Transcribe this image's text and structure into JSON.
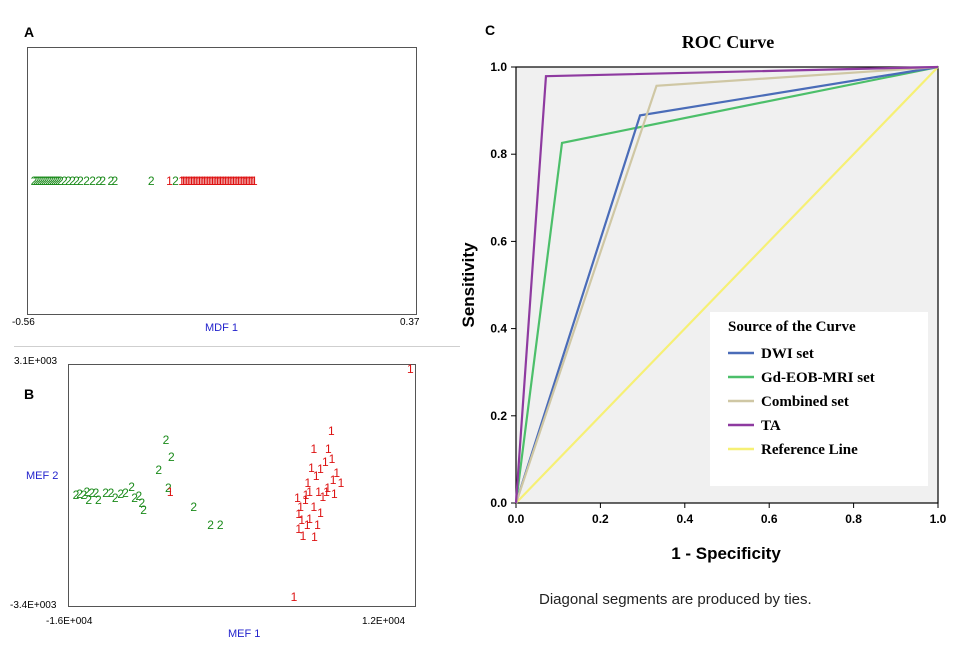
{
  "panels": {
    "a": "A",
    "b": "B",
    "c": "C"
  },
  "colors": {
    "group2": "#1a8a1a",
    "group1": "#dd1111",
    "axis_title": "#2222cc",
    "roc_bg": "#f0f0f0"
  },
  "chart_data": [
    {
      "id": "A",
      "type": "scatter",
      "title": "",
      "xlabel": "MDF 1",
      "ylabel": "",
      "x_tick_labels": [
        "-0.56",
        "0.37"
      ],
      "xlim": [
        -0.56,
        0.37
      ],
      "groups": [
        {
          "label": "2",
          "x": [
            -0.555,
            -0.55,
            -0.545,
            -0.54,
            -0.535,
            -0.53,
            -0.525,
            -0.52,
            -0.515,
            -0.51,
            -0.505,
            -0.5,
            -0.495,
            -0.49,
            -0.48,
            -0.47,
            -0.46,
            -0.45,
            -0.44,
            -0.425,
            -0.41,
            -0.395,
            -0.385,
            -0.365,
            -0.355,
            -0.265,
            -0.205
          ]
        },
        {
          "label": "1",
          "x": [
            -0.22,
            -0.19,
            -0.186,
            -0.182,
            -0.178,
            -0.174,
            -0.17,
            -0.166,
            -0.162,
            -0.158,
            -0.154,
            -0.15,
            -0.146,
            -0.142,
            -0.138,
            -0.134,
            -0.13,
            -0.126,
            -0.122,
            -0.118,
            -0.114,
            -0.11,
            -0.106,
            -0.102,
            -0.098,
            -0.094,
            -0.09,
            -0.086,
            -0.082,
            -0.078,
            -0.074,
            -0.07,
            -0.066,
            -0.062,
            -0.058,
            -0.054,
            -0.05,
            -0.046,
            -0.042,
            -0.038,
            -0.034,
            -0.03,
            -0.026,
            -0.022,
            -0.018,
            -0.014,
            -0.01
          ]
        }
      ]
    },
    {
      "id": "B",
      "type": "scatter",
      "title": "",
      "xlabel": "MEF 1",
      "ylabel": "MEF 2",
      "x_tick_labels": [
        "-1.6E+004",
        "1.2E+004"
      ],
      "y_tick_labels": [
        "3.1E+003",
        "-3.4E+003"
      ],
      "xlim": [
        -16000,
        12000
      ],
      "ylim": [
        -3400,
        3100
      ],
      "groups": [
        {
          "label": "2",
          "points": [
            [
              -15750,
              -410
            ],
            [
              -15450,
              -390
            ],
            [
              -15100,
              -420
            ],
            [
              -14850,
              -320
            ],
            [
              -14700,
              -550
            ],
            [
              -14450,
              -360
            ],
            [
              -14100,
              -370
            ],
            [
              -13900,
              -560
            ],
            [
              -13300,
              -350
            ],
            [
              -12850,
              -350
            ],
            [
              -12500,
              -500
            ],
            [
              -12050,
              -390
            ],
            [
              -11650,
              -370
            ],
            [
              -11150,
              -180
            ],
            [
              -10900,
              -500
            ],
            [
              -10550,
              -430
            ],
            [
              -10300,
              -630
            ],
            [
              -10150,
              -820
            ],
            [
              -8300,
              1130
            ],
            [
              -8900,
              280
            ],
            [
              -7850,
              640
            ],
            [
              -8100,
              -230
            ],
            [
              -6000,
              -760
            ],
            [
              -4600,
              -1250
            ],
            [
              -3800,
              -1250
            ]
          ]
        },
        {
          "label": "1",
          "points": [
            [
              11950,
              3100
            ],
            [
              5400,
              1380
            ],
            [
              3950,
              870
            ],
            [
              5150,
              870
            ],
            [
              4900,
              510
            ],
            [
              4500,
              320
            ],
            [
              4150,
              120
            ],
            [
              5550,
              0
            ],
            [
              5100,
              -210
            ],
            [
              4350,
              -330
            ],
            [
              3250,
              -550
            ],
            [
              3950,
              -760
            ],
            [
              4500,
              -910
            ],
            [
              3600,
              -1090
            ],
            [
              2850,
              -740
            ],
            [
              2700,
              -1370
            ],
            [
              3050,
              -1550
            ],
            [
              3300,
              -420
            ],
            [
              3600,
              -330
            ],
            [
              4700,
              -460
            ],
            [
              3750,
              350
            ],
            [
              5450,
              580
            ],
            [
              5850,
              200
            ],
            [
              5650,
              -380
            ],
            [
              6200,
              -80
            ],
            [
              2950,
              -1100
            ],
            [
              2700,
              -950
            ],
            [
              3400,
              -1250
            ],
            [
              4000,
              -1600
            ],
            [
              4250,
              -1250
            ],
            [
              5000,
              -320
            ],
            [
              2600,
              -500
            ],
            [
              3450,
              -80
            ],
            [
              -7950,
              -320
            ],
            [
              2300,
              -3250
            ]
          ]
        }
      ]
    },
    {
      "id": "C",
      "type": "line",
      "title": "ROC Curve",
      "xlabel": "1 - Specificity",
      "ylabel": "Sensitivity",
      "xlim": [
        0.0,
        1.0
      ],
      "ylim": [
        0.0,
        1.0
      ],
      "x_ticks": [
        "0.0",
        "0.2",
        "0.4",
        "0.6",
        "0.8",
        "1.0"
      ],
      "y_ticks": [
        "0.0",
        "0.2",
        "0.4",
        "0.6",
        "0.8",
        "1.0"
      ],
      "legend_title": "Source of the Curve",
      "legend_position": "bottom-right",
      "series": [
        {
          "name": "DWI set",
          "color": "#4a6cb8",
          "x": [
            0,
            0.294,
            1
          ],
          "y": [
            0,
            0.889,
            1
          ]
        },
        {
          "name": "Gd-EOB-MRI set",
          "color": "#4cbf6a",
          "x": [
            0,
            0.109,
            1
          ],
          "y": [
            0,
            0.826,
            1
          ]
        },
        {
          "name": "Combined set",
          "color": "#cfc7a4",
          "x": [
            0,
            0.333,
            1
          ],
          "y": [
            0,
            0.957,
            1
          ]
        },
        {
          "name": "TA",
          "color": "#8e3aa0",
          "x": [
            0,
            0.071,
            1
          ],
          "y": [
            0,
            0.979,
            1
          ]
        },
        {
          "name": "Reference Line",
          "color": "#f6f075",
          "x": [
            0,
            1
          ],
          "y": [
            0,
            1
          ]
        }
      ],
      "footnote": "Diagonal segments are produced by ties."
    }
  ]
}
